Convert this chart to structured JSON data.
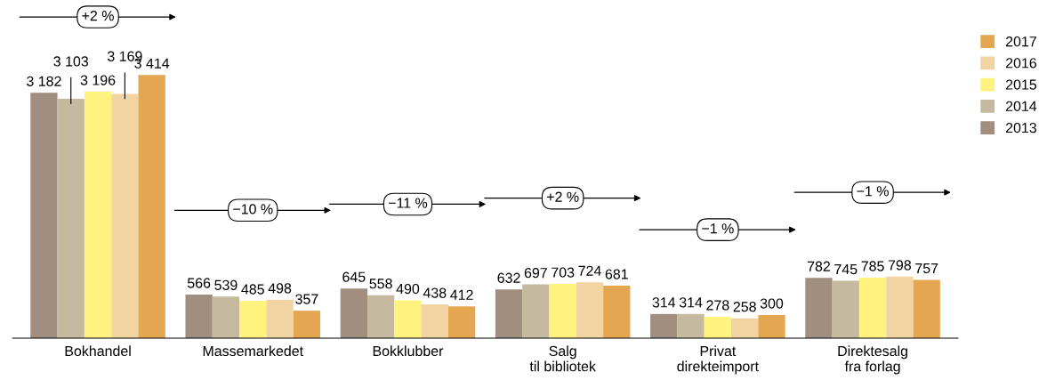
{
  "chart_data": {
    "type": "bar",
    "categories": [
      "Bokhandel",
      "Massemarkedet",
      "Bokklubber",
      "Salg\ntil bibliotek",
      "Privat\ndirekteimport",
      "Direktesalg\nfra forlag"
    ],
    "series": [
      {
        "name": "2013",
        "color": "#a28e7e",
        "values": [
          3182,
          566,
          645,
          632,
          314,
          782
        ],
        "value_labels": [
          "3 182",
          "566",
          "645",
          "632",
          "314",
          "782"
        ]
      },
      {
        "name": "2014",
        "color": "#c5b9a0",
        "values": [
          3103,
          539,
          558,
          697,
          314,
          745
        ],
        "value_labels": [
          "3 103",
          "539",
          "558",
          "697",
          "314",
          "745"
        ]
      },
      {
        "name": "2015",
        "color": "#fff27e",
        "values": [
          3196,
          485,
          490,
          703,
          278,
          785
        ],
        "value_labels": [
          "3 196",
          "485",
          "490",
          "703",
          "278",
          "785"
        ]
      },
      {
        "name": "2016",
        "color": "#f2d3a2",
        "values": [
          3169,
          498,
          438,
          724,
          258,
          798
        ],
        "value_labels": [
          "3 169",
          "498",
          "438",
          "724",
          "258",
          "798"
        ]
      },
      {
        "name": "2017",
        "color": "#e5a652",
        "values": [
          3414,
          357,
          412,
          681,
          300,
          757
        ],
        "value_labels": [
          "3 414",
          "357",
          "412",
          "681",
          "300",
          "757"
        ]
      }
    ],
    "legend": "top right",
    "grid": false,
    "annotations": [
      "+2 %",
      "−10 %",
      "−11 %",
      "+2 %",
      "−1 %",
      "−1 %"
    ]
  }
}
